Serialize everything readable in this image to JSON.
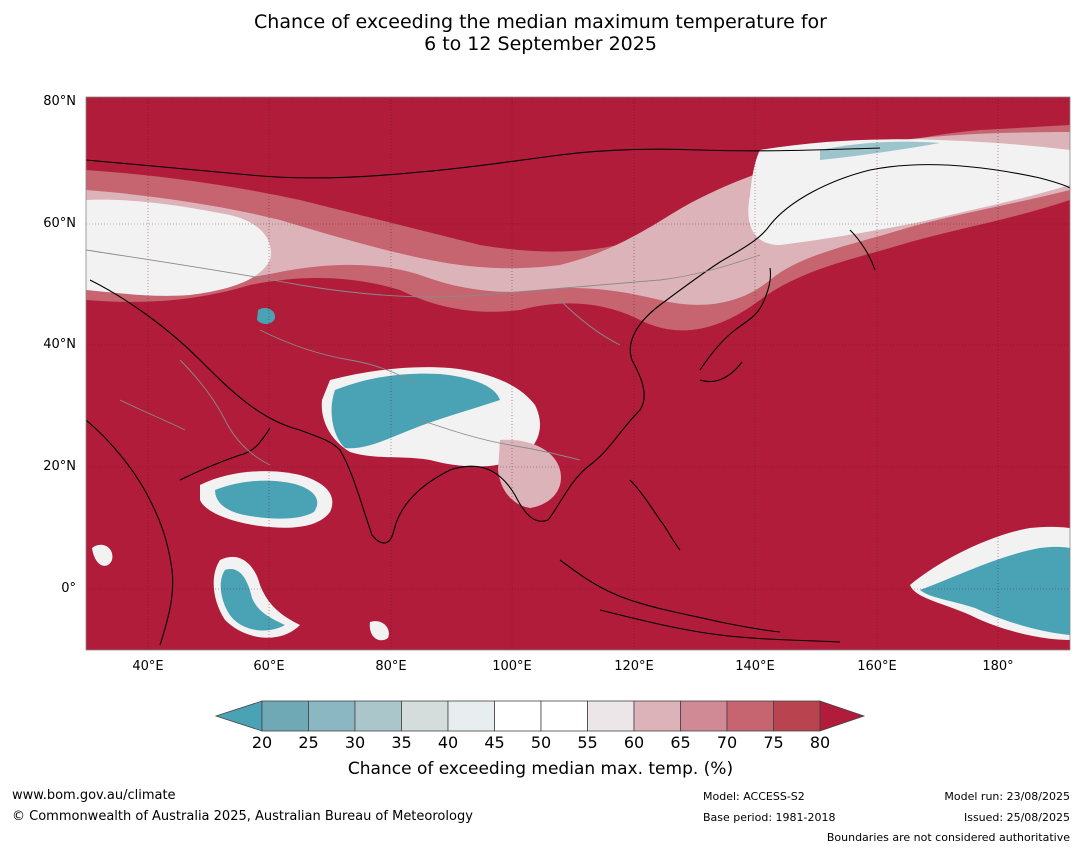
{
  "title_line1": "Chance of exceeding the median maximum temperature for",
  "title_line2": "6 to 12 September 2025",
  "lat_labels": [
    "80°N",
    "60°N",
    "40°N",
    "20°N",
    "0°"
  ],
  "lon_labels": [
    "40°E",
    "60°E",
    "80°E",
    "100°E",
    "120°E",
    "140°E",
    "160°E",
    "180°"
  ],
  "colorbar": {
    "ticks": [
      "20",
      "25",
      "30",
      "35",
      "40",
      "45",
      "50",
      "55",
      "60",
      "65",
      "70",
      "75",
      "80"
    ],
    "colors": [
      "#4aa3b5",
      "#6fa9b5",
      "#8ab7c2",
      "#abc6cb",
      "#d4dcdc",
      "#e8eeef",
      "#ffffff",
      "#ffffff",
      "#ece6e8",
      "#ddb3ba",
      "#d08a95",
      "#c6646f",
      "#ba4350",
      "#b01c3a"
    ],
    "label": "Chance of exceeding median max. temp. (%)"
  },
  "map_colors": {
    "high": "#b01c3a",
    "mid_high": "#c6646f",
    "mid": "#ddb3ba",
    "neutral": "#f2f2f2",
    "low": "#4aa3b5",
    "low_mid": "#9cc4cc"
  },
  "footer": {
    "website": "www.bom.gov.au/climate",
    "copyright": "© Commonwealth of Australia 2025, Australian Bureau of Meteorology",
    "model": "Model: ACCESS-S2",
    "base_period": "Base period: 1981-2018",
    "model_run": "Model run: 23/08/2025",
    "issued": "Issued: 25/08/2025",
    "boundaries": "Boundaries are not considered authoritative"
  }
}
